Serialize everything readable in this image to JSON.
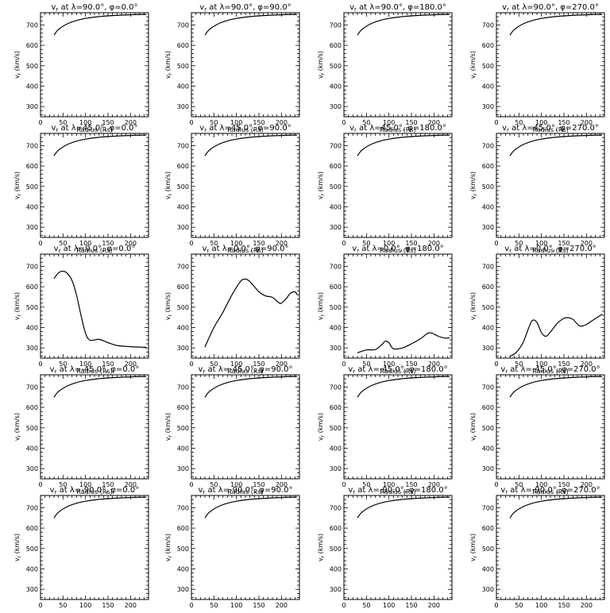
{
  "panel_labels": {
    "title_prefix": "v",
    "title_sub": "r",
    "title_mid": " at λ=",
    "title_phi": ", φ=",
    "deg": "°",
    "xlabel": "Radius (Rs)",
    "ylabel_v": "v",
    "ylabel_sub": "r",
    "ylabel_units": " (km/s)"
  },
  "chart_data": [
    {
      "type": "line",
      "lambda": "90.0",
      "phi": "0.0",
      "x": [
        30,
        40,
        60,
        80,
        100,
        130,
        160,
        200,
        235
      ],
      "y": [
        650,
        678,
        706,
        722,
        732,
        741,
        746,
        750,
        752
      ],
      "xlim": [
        0,
        240
      ],
      "ylim": [
        250,
        760
      ],
      "xticks": [
        0,
        50,
        100,
        150,
        200
      ],
      "yticks": [
        300,
        400,
        500,
        600,
        700
      ]
    },
    {
      "type": "line",
      "lambda": "90.0",
      "phi": "90.0",
      "x": [
        30,
        40,
        60,
        80,
        100,
        130,
        160,
        200,
        235
      ],
      "y": [
        650,
        678,
        706,
        722,
        732,
        741,
        746,
        750,
        752
      ],
      "xlim": [
        0,
        240
      ],
      "ylim": [
        250,
        760
      ],
      "xticks": [
        0,
        50,
        100,
        150,
        200
      ],
      "yticks": [
        300,
        400,
        500,
        600,
        700
      ]
    },
    {
      "type": "line",
      "lambda": "90.0",
      "phi": "180.0",
      "x": [
        30,
        40,
        60,
        80,
        100,
        130,
        160,
        200,
        235
      ],
      "y": [
        650,
        678,
        706,
        722,
        732,
        741,
        746,
        750,
        752
      ],
      "xlim": [
        0,
        240
      ],
      "ylim": [
        250,
        760
      ],
      "xticks": [
        0,
        50,
        100,
        150,
        200
      ],
      "yticks": [
        300,
        400,
        500,
        600,
        700
      ]
    },
    {
      "type": "line",
      "lambda": "90.0",
      "phi": "270.0",
      "x": [
        30,
        40,
        60,
        80,
        100,
        130,
        160,
        200,
        235
      ],
      "y": [
        650,
        678,
        706,
        722,
        732,
        741,
        746,
        750,
        752
      ],
      "xlim": [
        0,
        240
      ],
      "ylim": [
        250,
        760
      ],
      "xticks": [
        0,
        50,
        100,
        150,
        200
      ],
      "yticks": [
        300,
        400,
        500,
        600,
        700
      ]
    },
    {
      "type": "line",
      "lambda": "45.0",
      "phi": "0.0",
      "x": [
        30,
        40,
        60,
        80,
        100,
        130,
        160,
        200,
        235
      ],
      "y": [
        650,
        678,
        706,
        722,
        732,
        741,
        746,
        750,
        752
      ],
      "xlim": [
        0,
        240
      ],
      "ylim": [
        250,
        760
      ],
      "xticks": [
        0,
        50,
        100,
        150,
        200
      ],
      "yticks": [
        300,
        400,
        500,
        600,
        700
      ]
    },
    {
      "type": "line",
      "lambda": "45.0",
      "phi": "90.0",
      "x": [
        30,
        40,
        60,
        80,
        100,
        130,
        160,
        200,
        235
      ],
      "y": [
        650,
        678,
        706,
        722,
        732,
        741,
        746,
        750,
        752
      ],
      "xlim": [
        0,
        240
      ],
      "ylim": [
        250,
        760
      ],
      "xticks": [
        0,
        50,
        100,
        150,
        200
      ],
      "yticks": [
        300,
        400,
        500,
        600,
        700
      ]
    },
    {
      "type": "line",
      "lambda": "45.0",
      "phi": "180.0",
      "x": [
        30,
        40,
        60,
        80,
        100,
        130,
        160,
        200,
        235
      ],
      "y": [
        650,
        678,
        706,
        722,
        732,
        741,
        746,
        750,
        752
      ],
      "xlim": [
        0,
        240
      ],
      "ylim": [
        250,
        760
      ],
      "xticks": [
        0,
        50,
        100,
        150,
        200
      ],
      "yticks": [
        300,
        400,
        500,
        600,
        700
      ]
    },
    {
      "type": "line",
      "lambda": "45.0",
      "phi": "270.0",
      "x": [
        30,
        40,
        60,
        80,
        100,
        130,
        160,
        200,
        235
      ],
      "y": [
        650,
        678,
        706,
        722,
        732,
        741,
        746,
        750,
        752
      ],
      "xlim": [
        0,
        240
      ],
      "ylim": [
        250,
        760
      ],
      "xticks": [
        0,
        50,
        100,
        150,
        200
      ],
      "yticks": [
        300,
        400,
        500,
        600,
        700
      ]
    },
    {
      "type": "line",
      "lambda": "0.0",
      "phi": "0.0",
      "x": [
        30,
        40,
        50,
        60,
        70,
        80,
        90,
        100,
        110,
        130,
        150,
        170,
        200,
        235
      ],
      "y": [
        640,
        668,
        676,
        665,
        630,
        560,
        460,
        372,
        338,
        342,
        326,
        312,
        306,
        303
      ],
      "xlim": [
        0,
        240
      ],
      "ylim": [
        250,
        760
      ],
      "xticks": [
        0,
        50,
        100,
        150,
        200
      ],
      "yticks": [
        300,
        400,
        500,
        600,
        700
      ]
    },
    {
      "type": "line",
      "lambda": "0.0",
      "phi": "90.0",
      "x": [
        30,
        50,
        70,
        90,
        110,
        120,
        130,
        150,
        165,
        180,
        195,
        200,
        210,
        220,
        230,
        235
      ],
      "y": [
        305,
        400,
        475,
        560,
        628,
        637,
        625,
        575,
        555,
        548,
        520,
        520,
        540,
        568,
        575,
        560
      ],
      "xlim": [
        0,
        240
      ],
      "ylim": [
        250,
        760
      ],
      "xticks": [
        0,
        50,
        100,
        150,
        200
      ],
      "yticks": [
        300,
        400,
        500,
        600,
        700
      ]
    },
    {
      "type": "line",
      "lambda": "0.0",
      "phi": "180.0",
      "x": [
        30,
        50,
        70,
        85,
        92,
        100,
        110,
        130,
        150,
        170,
        185,
        195,
        210,
        225,
        235
      ],
      "y": [
        276,
        290,
        292,
        318,
        333,
        325,
        296,
        300,
        320,
        345,
        370,
        373,
        357,
        348,
        350
      ],
      "xlim": [
        0,
        240
      ],
      "ylim": [
        250,
        760
      ],
      "xticks": [
        0,
        50,
        100,
        150,
        200
      ],
      "yticks": [
        300,
        400,
        500,
        600,
        700
      ]
    },
    {
      "type": "line",
      "lambda": "0.0",
      "phi": "270.0",
      "x": [
        30,
        45,
        60,
        72,
        80,
        90,
        100,
        110,
        120,
        135,
        150,
        160,
        170,
        185,
        200,
        215,
        235
      ],
      "y": [
        258,
        280,
        330,
        400,
        435,
        425,
        375,
        357,
        378,
        420,
        445,
        448,
        440,
        408,
        415,
        437,
        465
      ],
      "xlim": [
        0,
        240
      ],
      "ylim": [
        250,
        760
      ],
      "xticks": [
        0,
        50,
        100,
        150,
        200
      ],
      "yticks": [
        300,
        400,
        500,
        600,
        700
      ]
    },
    {
      "type": "line",
      "lambda": "-45.0",
      "phi": "0.0",
      "x": [
        30,
        40,
        60,
        80,
        100,
        130,
        160,
        200,
        235
      ],
      "y": [
        650,
        678,
        706,
        722,
        732,
        741,
        746,
        750,
        752
      ],
      "xlim": [
        0,
        240
      ],
      "ylim": [
        250,
        760
      ],
      "xticks": [
        0,
        50,
        100,
        150,
        200
      ],
      "yticks": [
        300,
        400,
        500,
        600,
        700
      ]
    },
    {
      "type": "line",
      "lambda": "-45.0",
      "phi": "90.0",
      "x": [
        30,
        40,
        60,
        80,
        100,
        130,
        160,
        200,
        235
      ],
      "y": [
        650,
        678,
        706,
        722,
        732,
        741,
        746,
        750,
        752
      ],
      "xlim": [
        0,
        240
      ],
      "ylim": [
        250,
        760
      ],
      "xticks": [
        0,
        50,
        100,
        150,
        200
      ],
      "yticks": [
        300,
        400,
        500,
        600,
        700
      ]
    },
    {
      "type": "line",
      "lambda": "-45.0",
      "phi": "180.0",
      "x": [
        30,
        40,
        60,
        80,
        100,
        130,
        160,
        200,
        235
      ],
      "y": [
        650,
        678,
        706,
        722,
        732,
        741,
        746,
        750,
        752
      ],
      "xlim": [
        0,
        240
      ],
      "ylim": [
        250,
        760
      ],
      "xticks": [
        0,
        50,
        100,
        150,
        200
      ],
      "yticks": [
        300,
        400,
        500,
        600,
        700
      ]
    },
    {
      "type": "line",
      "lambda": "-45.0",
      "phi": "270.0",
      "x": [
        30,
        40,
        60,
        80,
        100,
        130,
        160,
        200,
        235
      ],
      "y": [
        650,
        678,
        706,
        722,
        732,
        741,
        746,
        750,
        752
      ],
      "xlim": [
        0,
        240
      ],
      "ylim": [
        250,
        760
      ],
      "xticks": [
        0,
        50,
        100,
        150,
        200
      ],
      "yticks": [
        300,
        400,
        500,
        600,
        700
      ]
    },
    {
      "type": "line",
      "lambda": "-90.0",
      "phi": "0.0",
      "x": [
        30,
        40,
        60,
        80,
        100,
        130,
        160,
        200,
        235
      ],
      "y": [
        650,
        678,
        706,
        722,
        732,
        741,
        746,
        750,
        752
      ],
      "xlim": [
        0,
        240
      ],
      "ylim": [
        250,
        760
      ],
      "xticks": [
        0,
        50,
        100,
        150,
        200
      ],
      "yticks": [
        300,
        400,
        500,
        600,
        700
      ]
    },
    {
      "type": "line",
      "lambda": "-90.0",
      "phi": "90.0",
      "x": [
        30,
        40,
        60,
        80,
        100,
        130,
        160,
        200,
        235
      ],
      "y": [
        650,
        678,
        706,
        722,
        732,
        741,
        746,
        750,
        752
      ],
      "xlim": [
        0,
        240
      ],
      "ylim": [
        250,
        760
      ],
      "xticks": [
        0,
        50,
        100,
        150,
        200
      ],
      "yticks": [
        300,
        400,
        500,
        600,
        700
      ]
    },
    {
      "type": "line",
      "lambda": "-90.0",
      "phi": "180.0",
      "x": [
        30,
        40,
        60,
        80,
        100,
        130,
        160,
        200,
        235
      ],
      "y": [
        650,
        678,
        706,
        722,
        732,
        741,
        746,
        750,
        752
      ],
      "xlim": [
        0,
        240
      ],
      "ylim": [
        250,
        760
      ],
      "xticks": [
        0,
        50,
        100,
        150,
        200
      ],
      "yticks": [
        300,
        400,
        500,
        600,
        700
      ]
    },
    {
      "type": "line",
      "lambda": "-90.0",
      "phi": "270.0",
      "x": [
        30,
        40,
        60,
        80,
        100,
        130,
        160,
        200,
        235
      ],
      "y": [
        650,
        678,
        706,
        722,
        732,
        741,
        746,
        750,
        752
      ],
      "xlim": [
        0,
        240
      ],
      "ylim": [
        250,
        760
      ],
      "xticks": [
        0,
        50,
        100,
        150,
        200
      ],
      "yticks": [
        300,
        400,
        500,
        600,
        700
      ]
    }
  ]
}
